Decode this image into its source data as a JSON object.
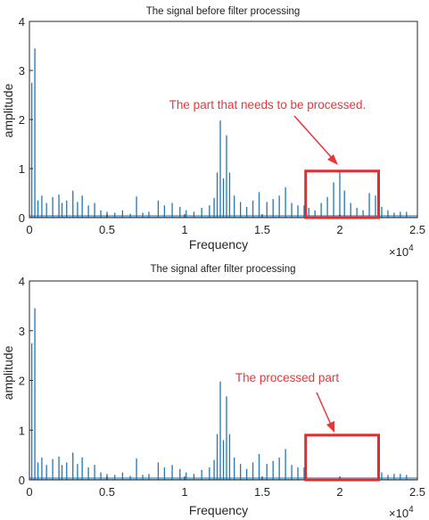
{
  "charts": [
    {
      "title": "The signal before filter processing",
      "ylabel": "amplitude",
      "xlabel": "Frequency",
      "x_multiplier": "10",
      "x_multiplier_exp": "4",
      "annotation": "The part that needs to be processed."
    },
    {
      "title": "The signal after filter processing",
      "ylabel": "amplitude",
      "xlabel": "Frequency",
      "x_multiplier": "10",
      "x_multiplier_exp": "4",
      "annotation": "The processed part"
    }
  ],
  "colors": {
    "signal": "#1f77b4",
    "annotation": "#e8363a",
    "axis": "#262626"
  },
  "chart_data": [
    {
      "type": "line",
      "title": "The signal before filter processing",
      "xlabel": "Frequency",
      "ylabel": "amplitude",
      "x_scale_note": "×10^4",
      "xlim": [
        0,
        25000
      ],
      "ylim": [
        0,
        4
      ],
      "xticks": [
        "0",
        "0.5",
        "1",
        "1.5",
        "2",
        "2.5"
      ],
      "yticks": [
        "0",
        "1",
        "2",
        "3",
        "4"
      ],
      "grid": false,
      "highlight_region": {
        "x": [
          17800,
          22500
        ],
        "y": [
          0,
          0.95
        ]
      },
      "peaks": {
        "x": [
          150,
          350,
          550,
          800,
          1100,
          1500,
          1900,
          2100,
          2400,
          2800,
          3100,
          3400,
          3800,
          4200,
          4600,
          5000,
          5500,
          6000,
          6500,
          6900,
          7300,
          7700,
          8300,
          8700,
          9200,
          9700,
          10100,
          10600,
          11100,
          11600,
          11900,
          12100,
          12300,
          12500,
          12700,
          12900,
          13200,
          13600,
          14000,
          14400,
          14800,
          15300,
          15700,
          16100,
          16500,
          16900,
          17300,
          17700,
          18000,
          18400,
          18800,
          19200,
          19600,
          20000,
          20300,
          20700,
          21100,
          21500,
          21900,
          22300,
          22700,
          23100,
          23500,
          23900,
          24300
        ],
        "y": [
          2.75,
          3.45,
          0.35,
          0.45,
          0.3,
          0.42,
          0.47,
          0.3,
          0.35,
          0.55,
          0.32,
          0.45,
          0.25,
          0.3,
          0.15,
          0.12,
          0.1,
          0.15,
          0.08,
          0.43,
          0.1,
          0.12,
          0.35,
          0.25,
          0.3,
          0.22,
          0.15,
          0.12,
          0.2,
          0.25,
          0.4,
          0.92,
          1.98,
          0.8,
          1.68,
          0.92,
          0.45,
          0.32,
          0.22,
          0.35,
          0.52,
          0.32,
          0.38,
          0.45,
          0.62,
          0.3,
          0.25,
          0.25,
          0.2,
          0.15,
          0.3,
          0.42,
          0.72,
          0.95,
          0.55,
          0.3,
          0.2,
          0.15,
          0.5,
          0.45,
          0.22,
          0.15,
          0.1,
          0.12,
          0.12
        ]
      }
    },
    {
      "type": "line",
      "title": "The signal after filter processing",
      "xlabel": "Frequency",
      "ylabel": "amplitude",
      "x_scale_note": "×10^4",
      "xlim": [
        0,
        25000
      ],
      "ylim": [
        0,
        4
      ],
      "xticks": [
        "0",
        "0.5",
        "1",
        "1.5",
        "2",
        "2.5"
      ],
      "yticks": [
        "0",
        "1",
        "2",
        "3",
        "4"
      ],
      "grid": false,
      "highlight_region": {
        "x": [
          17800,
          22500
        ],
        "y": [
          0,
          0.9
        ]
      },
      "peaks": {
        "x": [
          150,
          350,
          550,
          800,
          1100,
          1500,
          1900,
          2100,
          2400,
          2800,
          3100,
          3400,
          3800,
          4200,
          4600,
          5000,
          5500,
          6000,
          6500,
          6900,
          7300,
          7700,
          8300,
          8700,
          9200,
          9700,
          10100,
          10600,
          11100,
          11600,
          11900,
          12100,
          12300,
          12500,
          12700,
          12900,
          13200,
          13600,
          14000,
          14400,
          14800,
          15300,
          15700,
          16100,
          16500,
          16900,
          17300,
          17700,
          22700,
          23100,
          23500,
          23900,
          24300
        ],
        "y": [
          2.75,
          3.45,
          0.35,
          0.45,
          0.3,
          0.42,
          0.47,
          0.3,
          0.35,
          0.55,
          0.32,
          0.45,
          0.25,
          0.3,
          0.15,
          0.12,
          0.1,
          0.15,
          0.08,
          0.43,
          0.1,
          0.12,
          0.35,
          0.25,
          0.3,
          0.22,
          0.15,
          0.12,
          0.2,
          0.25,
          0.4,
          0.92,
          1.98,
          0.8,
          1.68,
          0.92,
          0.45,
          0.32,
          0.22,
          0.35,
          0.52,
          0.32,
          0.38,
          0.45,
          0.62,
          0.3,
          0.25,
          0.25,
          0.15,
          0.1,
          0.12,
          0.12,
          0.1
        ]
      }
    }
  ]
}
